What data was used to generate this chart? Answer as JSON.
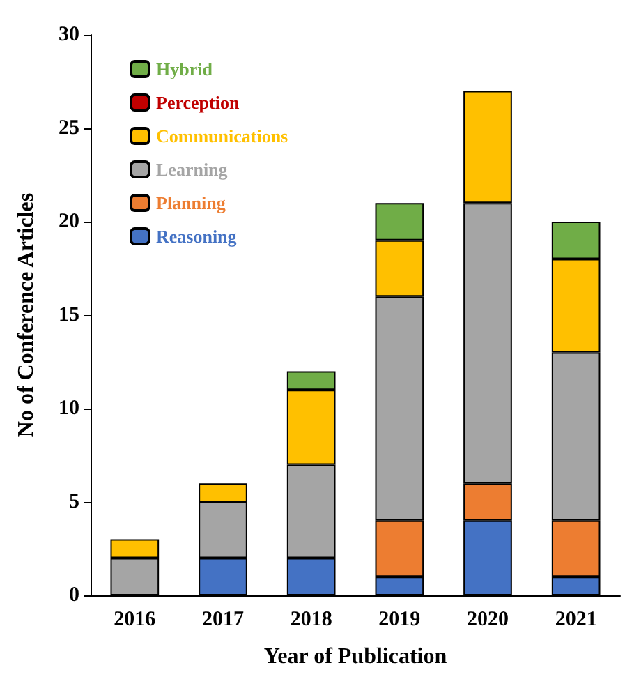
{
  "chart_data": {
    "type": "bar",
    "stacked": true,
    "xlabel": "Year of Publication",
    "ylabel": "No of Conference Articles",
    "categories": [
      "2016",
      "2017",
      "2018",
      "2019",
      "2020",
      "2021"
    ],
    "series": [
      {
        "name": "Reasoning",
        "color": "#4472c4",
        "values": [
          0,
          2,
          2,
          1,
          4,
          1
        ]
      },
      {
        "name": "Planning",
        "color": "#ed7d31",
        "values": [
          0,
          0,
          0,
          3,
          2,
          3
        ]
      },
      {
        "name": "Learning",
        "color": "#a5a5a5",
        "values": [
          2,
          3,
          5,
          12,
          15,
          9
        ]
      },
      {
        "name": "Communications",
        "color": "#ffc000",
        "values": [
          1,
          1,
          4,
          3,
          6,
          5
        ]
      },
      {
        "name": "Perception",
        "color": "#c00000",
        "values": [
          0,
          0,
          0,
          0,
          0,
          0
        ]
      },
      {
        "name": "Hybrid",
        "color": "#70ad47",
        "values": [
          0,
          0,
          1,
          2,
          0,
          2
        ]
      }
    ],
    "ylim": [
      0,
      30
    ],
    "yticks": [
      0,
      5,
      10,
      15,
      20,
      25,
      30
    ],
    "grid": false,
    "legend": "top left"
  }
}
